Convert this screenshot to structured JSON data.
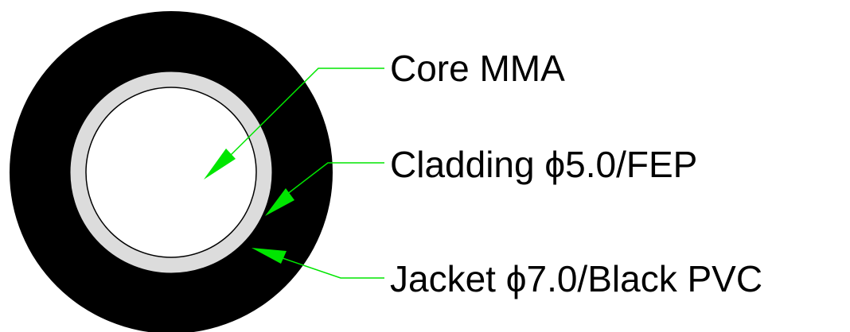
{
  "labels": {
    "core": "Core MMA",
    "cladding": "Cladding ϕ5.0/FEP",
    "jacket": "Jacket ϕ7.0/Black PVC"
  },
  "colors": {
    "jacket": "#000000",
    "cladding": "#dcdcdc",
    "core": "#ffffff",
    "outline": "#000000",
    "leader": "#00e600",
    "background": "#ffffff"
  }
}
